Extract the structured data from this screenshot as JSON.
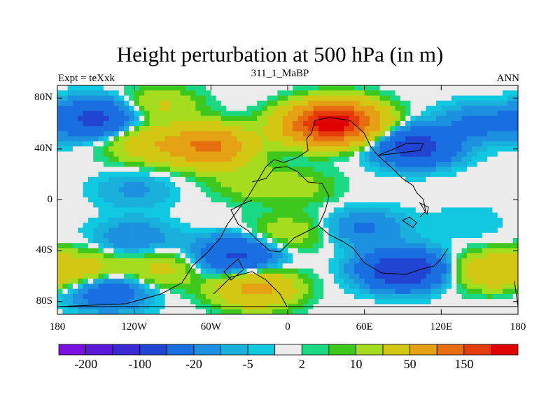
{
  "chart_data": {
    "type": "heatmap",
    "title": "Height perturbation at 500 hPa (in m)",
    "subtitle_left": "Expt = teXxk",
    "subtitle_center": "311_1_MaBP",
    "subtitle_right": "ANN",
    "x_ticks": [
      "180",
      "120W",
      "60W",
      "0",
      "60E",
      "120E",
      "180"
    ],
    "x_tick_values": [
      -180,
      -120,
      -60,
      0,
      60,
      120,
      180
    ],
    "y_ticks": [
      "80N",
      "40N",
      "0",
      "40S",
      "80S"
    ],
    "y_tick_values": [
      80,
      40,
      0,
      -40,
      -80
    ],
    "xlim": [
      -180,
      180
    ],
    "ylim": [
      -90,
      90
    ],
    "colorbar": {
      "levels": [
        -200,
        -150,
        -100,
        -50,
        -20,
        -10,
        -5,
        -2,
        2,
        5,
        10,
        20,
        50,
        100,
        150,
        200
      ],
      "labels": [
        "-200",
        "-100",
        "-20",
        "-5",
        "2",
        "10",
        "50",
        "150"
      ],
      "colors": [
        "#7a10e0",
        "#5a18d8",
        "#3a2ad0",
        "#2145d2",
        "#1a6fe0",
        "#1d90e0",
        "#1ab0dc",
        "#10c8e0",
        "#ebebeb",
        "#1ad884",
        "#3ec81e",
        "#a6dc1e",
        "#d2c814",
        "#e6a014",
        "#e66e10",
        "#e63c0a",
        "#e00000"
      ]
    },
    "anomaly_regions": [
      {
        "lon": -150,
        "lat": 64,
        "value": -60
      },
      {
        "lon": -110,
        "lat": 44,
        "value": 35
      },
      {
        "lon": -62,
        "lat": 42,
        "value": 110
      },
      {
        "lon": -100,
        "lat": 74,
        "value": 22
      },
      {
        "lon": 25,
        "lat": 58,
        "value": 95
      },
      {
        "lon": 40,
        "lat": 62,
        "value": 170
      },
      {
        "lon": 100,
        "lat": 42,
        "value": -70
      },
      {
        "lon": 150,
        "lat": 60,
        "value": -25
      },
      {
        "lon": -120,
        "lat": 8,
        "value": -12
      },
      {
        "lon": -30,
        "lat": 14,
        "value": 15
      },
      {
        "lon": 10,
        "lat": 10,
        "value": 12
      },
      {
        "lon": 0,
        "lat": -26,
        "value": 18
      },
      {
        "lon": -120,
        "lat": -30,
        "value": -20
      },
      {
        "lon": -160,
        "lat": -55,
        "value": 30
      },
      {
        "lon": -100,
        "lat": -55,
        "value": 25
      },
      {
        "lon": -140,
        "lat": -72,
        "value": -40
      },
      {
        "lon": -40,
        "lat": -44,
        "value": -55
      },
      {
        "lon": -25,
        "lat": -70,
        "value": 60
      },
      {
        "lon": 60,
        "lat": -22,
        "value": -22
      },
      {
        "lon": 90,
        "lat": -55,
        "value": -90
      },
      {
        "lon": 160,
        "lat": -56,
        "value": 40
      },
      {
        "lon": 140,
        "lat": -18,
        "value": -5
      }
    ],
    "continent_outline": "coastline (land outlines overlaid as black contour)"
  }
}
